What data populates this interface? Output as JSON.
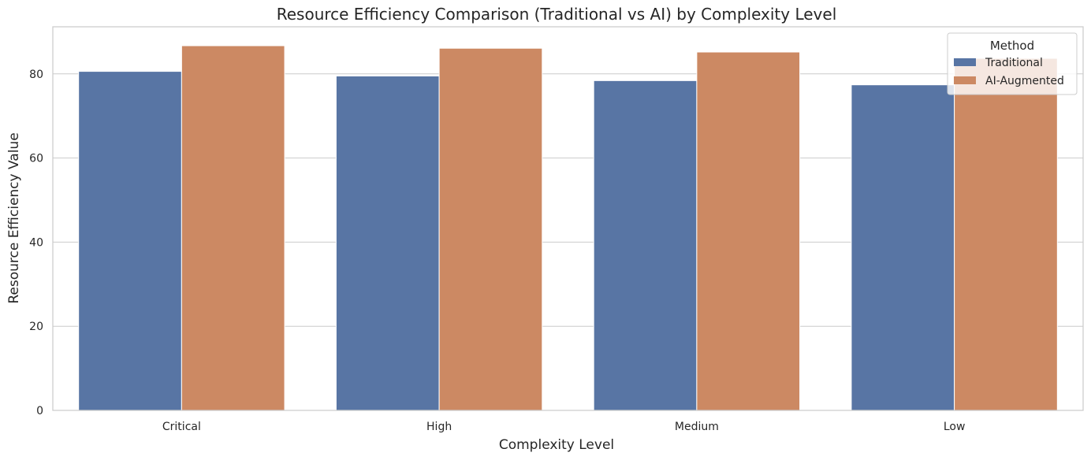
{
  "chart_data": {
    "type": "bar",
    "title": "Resource Efficiency Comparison (Traditional vs AI) by Complexity Level",
    "xlabel": "Complexity Level",
    "ylabel": "Resource Efficiency Value",
    "categories": [
      "Critical",
      "High",
      "Medium",
      "Low"
    ],
    "series": [
      {
        "name": "Traditional",
        "color": "#5875a4",
        "values": [
          80.6,
          79.5,
          78.4,
          77.4
        ]
      },
      {
        "name": "AI-Augmented",
        "color": "#cc8963",
        "values": [
          86.7,
          86.1,
          85.2,
          83.7
        ]
      }
    ],
    "ylim": [
      0,
      91.2
    ],
    "yticks": [
      0,
      20,
      40,
      60,
      80
    ],
    "grid": "horizontal",
    "legend": {
      "title": "Method",
      "placement": "top-right"
    }
  }
}
